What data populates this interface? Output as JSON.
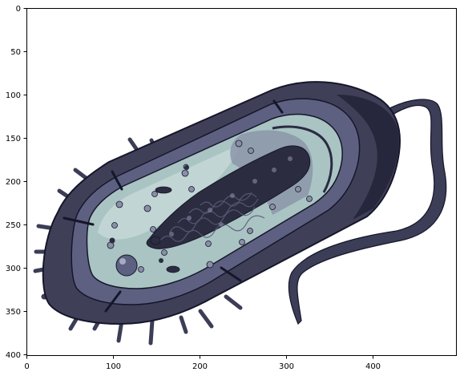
{
  "figure": {
    "x_axis": {
      "ticks": [
        "0",
        "100",
        "200",
        "300",
        "400"
      ]
    },
    "y_axis": {
      "ticks": [
        "0",
        "50",
        "100",
        "150",
        "200",
        "250",
        "300",
        "350",
        "400"
      ]
    },
    "image": {
      "subject": "bacterium-cutaway-icon",
      "colors": {
        "outer_wall": "#3f4058",
        "wall_dark": "#23243a",
        "membrane": "#5d6080",
        "cytoplasm": "#a9c4c3",
        "cytoplasm_light": "#c9dcda",
        "interior_shadow": "#8c96a8",
        "nucleoid": "#2b2c40",
        "ribosome": "#8a8fa8",
        "flagellum": "#3c3d56",
        "outline": "#15162a"
      }
    }
  }
}
